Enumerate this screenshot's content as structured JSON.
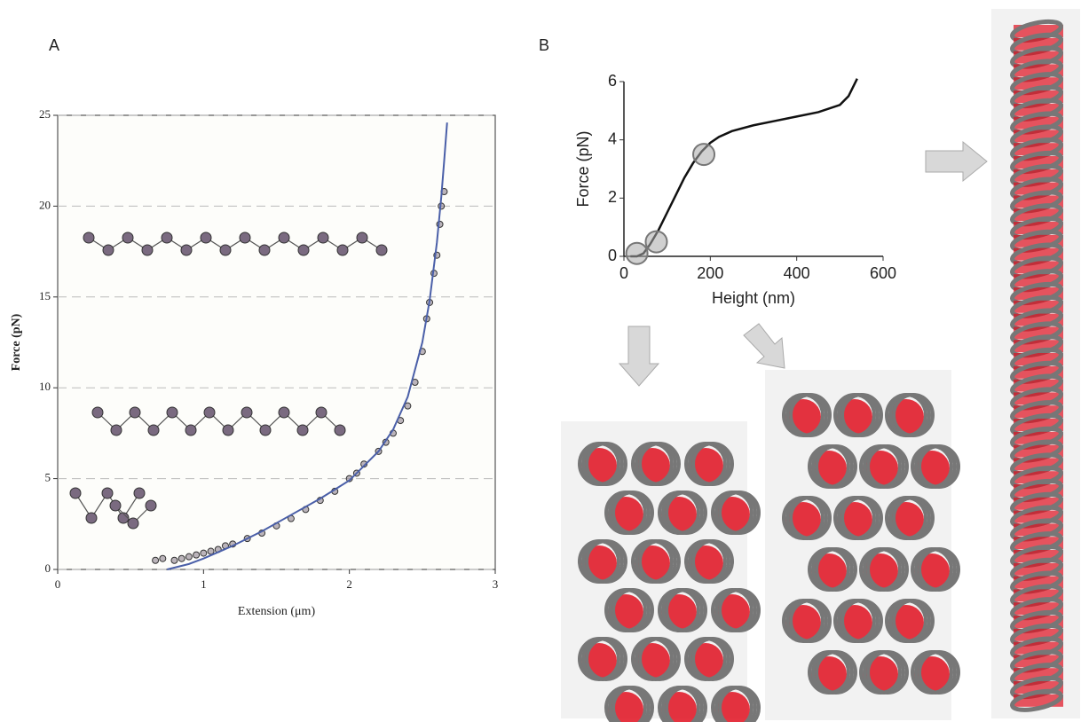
{
  "chart_data": [
    {
      "type": "scatter",
      "label": "A",
      "xlabel": "Extension (μm)",
      "ylabel": "Force (pN)",
      "xlim": [
        0,
        3
      ],
      "ylim": [
        0,
        25
      ],
      "xticks": [
        0,
        1,
        2,
        3
      ],
      "yticks": [
        0,
        5,
        10,
        15,
        20,
        25
      ],
      "grid": true,
      "series": [
        {
          "type": "scatter",
          "color": "#8f8490",
          "x": [
            0.67,
            0.72,
            0.8,
            0.85,
            0.9,
            0.95,
            1.0,
            1.05,
            1.1,
            1.15,
            1.2,
            1.3,
            1.4,
            1.5,
            1.6,
            1.7,
            1.8,
            1.9,
            2.0,
            2.05,
            2.1,
            2.2,
            2.25,
            2.3,
            2.35,
            2.4,
            2.45,
            2.5,
            2.53,
            2.55,
            2.58,
            2.6,
            2.62,
            2.63,
            2.65
          ],
          "values": [
            0.5,
            0.6,
            0.5,
            0.6,
            0.7,
            0.8,
            0.9,
            1.0,
            1.1,
            1.3,
            1.4,
            1.7,
            2.0,
            2.4,
            2.8,
            3.3,
            3.8,
            4.3,
            5.0,
            5.3,
            5.8,
            6.5,
            7.0,
            7.5,
            8.2,
            9.0,
            10.3,
            12.0,
            13.8,
            14.7,
            16.3,
            17.3,
            19.0,
            20.0,
            20.8
          ]
        },
        {
          "type": "line",
          "color": "#4a5fa8",
          "x": [
            0.75,
            0.9,
            1.0,
            1.2,
            1.4,
            1.6,
            1.8,
            2.0,
            2.2,
            2.3,
            2.4,
            2.5,
            2.55,
            2.6,
            2.63,
            2.65,
            2.67
          ],
          "values": [
            0,
            0.3,
            0.6,
            1.3,
            2.1,
            3.0,
            3.9,
            4.9,
            6.5,
            7.7,
            9.5,
            12.5,
            14.8,
            18,
            20.5,
            22.5,
            24.6
          ]
        }
      ]
    },
    {
      "type": "line",
      "label": "B",
      "xlabel": "Height (nm)",
      "ylabel": "Force (pN)",
      "xlim": [
        0,
        600
      ],
      "ylim": [
        0,
        6
      ],
      "xticks": [
        0,
        200,
        400,
        600
      ],
      "yticks": [
        0,
        2,
        4,
        6
      ],
      "color": "#111111",
      "x": [
        15,
        30,
        45,
        60,
        80,
        100,
        120,
        140,
        160,
        180,
        200,
        220,
        250,
        300,
        350,
        400,
        450,
        500,
        520,
        540
      ],
      "values": [
        0,
        0,
        0.1,
        0.4,
        0.9,
        1.5,
        2.1,
        2.7,
        3.2,
        3.6,
        3.9,
        4.1,
        4.3,
        4.5,
        4.65,
        4.8,
        4.95,
        5.2,
        5.5,
        6.1
      ],
      "highlights": {
        "color": "#aaaaaa",
        "x": [
          30,
          75,
          185
        ],
        "values": [
          0.1,
          0.5,
          3.5
        ]
      }
    }
  ]
}
